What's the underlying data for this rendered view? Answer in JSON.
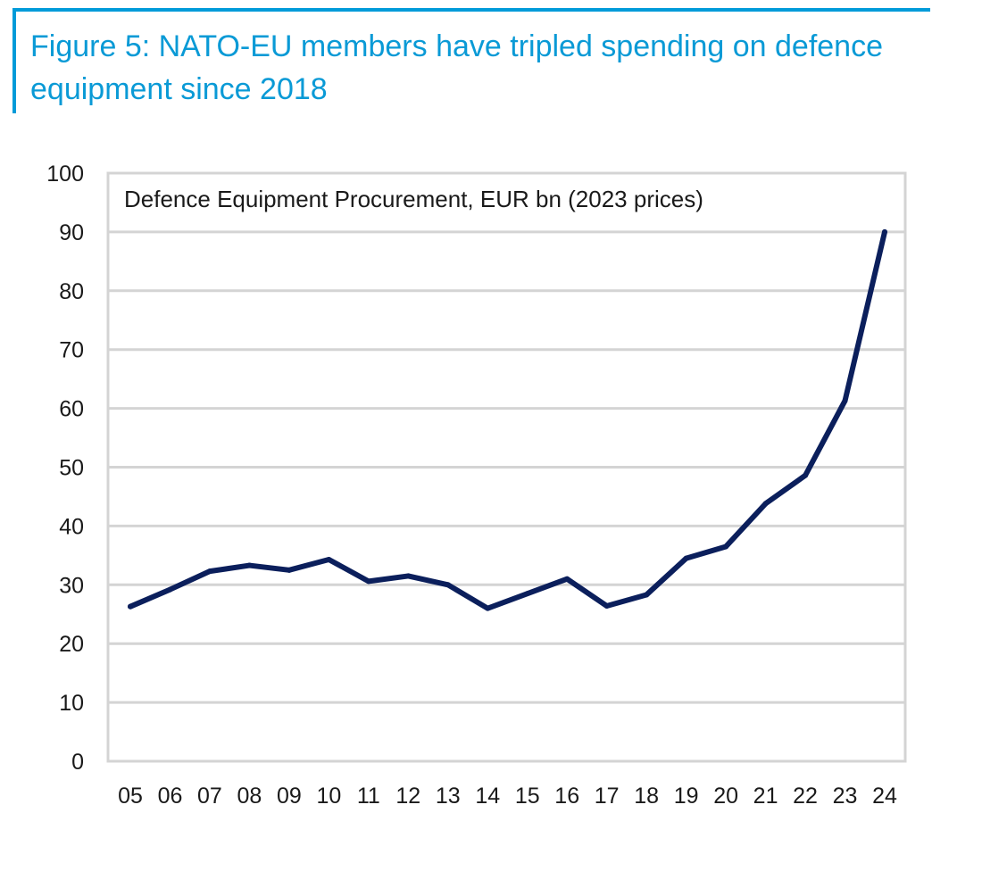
{
  "header": {
    "title": "Figure 5: NATO-EU members have tripled spending on defence equipment since 2018",
    "accent_color": "#009bd9"
  },
  "chart_data": {
    "type": "line",
    "subtitle": "Defence Equipment Procurement, EUR bn (2023 prices)",
    "categories": [
      "05",
      "06",
      "07",
      "08",
      "09",
      "10",
      "11",
      "12",
      "13",
      "14",
      "15",
      "16",
      "17",
      "18",
      "19",
      "20",
      "21",
      "22",
      "23",
      "24"
    ],
    "series": [
      {
        "color": "#0b1f5c",
        "values": [
          26.3,
          29.2,
          32.3,
          33.3,
          32.5,
          34.3,
          30.6,
          31.5,
          30.0,
          26.0,
          28.5,
          31.0,
          26.4,
          28.3,
          34.5,
          36.5,
          43.8,
          48.6,
          61.3,
          90.0
        ]
      }
    ],
    "ylim": [
      0,
      100
    ],
    "yticks": [
      0,
      10,
      20,
      30,
      40,
      50,
      60,
      70,
      80,
      90,
      100
    ],
    "grid": true,
    "gridline_color": "#d4d4d4",
    "legend": "none"
  }
}
